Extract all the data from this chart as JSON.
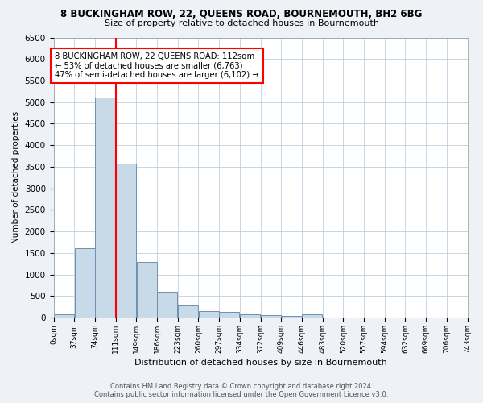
{
  "title": "8 BUCKINGHAM ROW, 22, QUEENS ROAD, BOURNEMOUTH, BH2 6BG",
  "subtitle": "Size of property relative to detached houses in Bournemouth",
  "xlabel": "Distribution of detached houses by size in Bournemouth",
  "ylabel": "Number of detached properties",
  "bin_starts": [
    0,
    37,
    74,
    111,
    148,
    185,
    222,
    259,
    296,
    333,
    370,
    407,
    444,
    481,
    518,
    555,
    592,
    629,
    666,
    703
  ],
  "bin_labels": [
    "0sqm",
    "37sqm",
    "74sqm",
    "111sqm",
    "149sqm",
    "186sqm",
    "223sqm",
    "260sqm",
    "297sqm",
    "334sqm",
    "372sqm",
    "409sqm",
    "446sqm",
    "483sqm",
    "520sqm",
    "557sqm",
    "594sqm",
    "632sqm",
    "669sqm",
    "706sqm",
    "743sqm"
  ],
  "counts": [
    75,
    1600,
    5100,
    3570,
    1300,
    590,
    290,
    150,
    130,
    75,
    50,
    40,
    75,
    0,
    0,
    0,
    0,
    0,
    0,
    0
  ],
  "bar_color": "#c8d9e8",
  "bar_edge_color": "#7090b0",
  "property_size": 112,
  "vline_color": "red",
  "annotation_line1": "8 BUCKINGHAM ROW, 22 QUEENS ROAD: 112sqm",
  "annotation_line2": "← 53% of detached houses are smaller (6,763)",
  "annotation_line3": "47% of semi-detached houses are larger (6,102) →",
  "annotation_box_color": "white",
  "annotation_box_edge": "red",
  "ylim": [
    0,
    6500
  ],
  "yticks": [
    0,
    500,
    1000,
    1500,
    2000,
    2500,
    3000,
    3500,
    4000,
    4500,
    5000,
    5500,
    6000,
    6500
  ],
  "footer_line1": "Contains HM Land Registry data © Crown copyright and database right 2024.",
  "footer_line2": "Contains public sector information licensed under the Open Government Licence v3.0.",
  "background_color": "#eef2f6",
  "plot_bg_color": "white",
  "grid_color": "#bfcfdf"
}
